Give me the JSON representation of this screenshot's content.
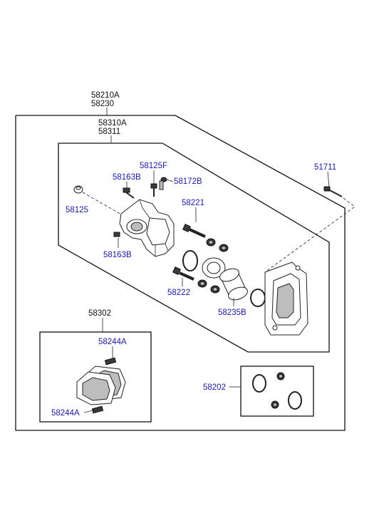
{
  "labels": {
    "assy_a": "58210A",
    "assy_b": "58230",
    "caliper_a": "58310A",
    "caliper_b": "58311",
    "bolt_51711": "51711",
    "screw_58125f": "58125F",
    "bolt_58163b_top": "58163B",
    "bleeder_58172b": "58172B",
    "bolt_58125": "58125",
    "bolt_58163b_bottom": "58163B",
    "pin_58221": "58221",
    "pin_58222": "58222",
    "piston_58235b": "58235B",
    "pad_kit_58302": "58302",
    "clip_58244a_top": "58244A",
    "clip_58244a_bottom": "58244A",
    "seal_kit_58202": "58202"
  },
  "colors": {
    "label": "#1a1aa8",
    "title_label": "#111111",
    "line": "#111111"
  }
}
